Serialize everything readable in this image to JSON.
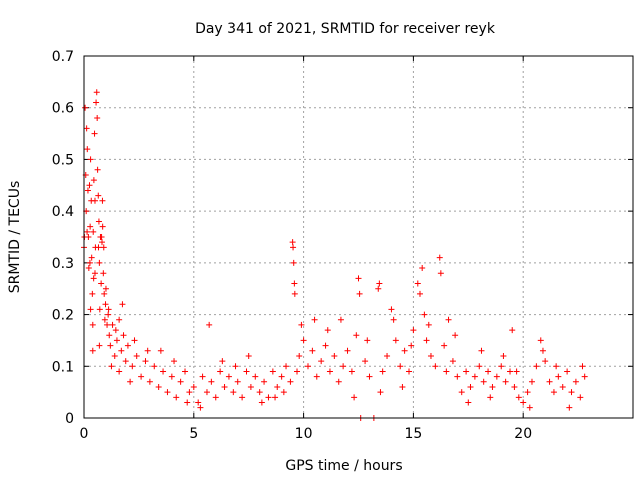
{
  "chart_data": {
    "type": "scatter",
    "title": "Day 341 of 2021, SRMTID for receiver reyk",
    "xlabel": "GPS time / hours",
    "ylabel": "SRMTID / TECUs",
    "xlim": [
      0,
      25
    ],
    "ylim": [
      0,
      0.7
    ],
    "x_ticks": [
      0,
      5,
      10,
      15,
      20
    ],
    "y_ticks": [
      0,
      0.1,
      0.2,
      0.3,
      0.4,
      0.5,
      0.6,
      0.7
    ],
    "x_tick_labels": [
      "0",
      "5",
      "10",
      "15",
      "20"
    ],
    "y_tick_labels": [
      "0",
      "0.1",
      "0.2",
      "0.3",
      "0.4",
      "0.5",
      "0.6",
      "0.7"
    ],
    "grid": true,
    "marker": "+",
    "series_color": "#ff0000",
    "series": [
      {
        "name": "reyk",
        "points": [
          [
            0.0,
            0.33
          ],
          [
            0.05,
            0.6
          ],
          [
            0.08,
            0.47
          ],
          [
            0.1,
            0.4
          ],
          [
            0.12,
            0.56
          ],
          [
            0.15,
            0.52
          ],
          [
            0.18,
            0.44
          ],
          [
            0.2,
            0.35
          ],
          [
            0.22,
            0.29
          ],
          [
            0.25,
            0.45
          ],
          [
            0.28,
            0.37
          ],
          [
            0.3,
            0.5
          ],
          [
            0.33,
            0.42
          ],
          [
            0.35,
            0.31
          ],
          [
            0.38,
            0.24
          ],
          [
            0.4,
            0.13
          ],
          [
            0.42,
            0.36
          ],
          [
            0.45,
            0.46
          ],
          [
            0.48,
            0.55
          ],
          [
            0.5,
            0.42
          ],
          [
            0.52,
            0.33
          ],
          [
            0.55,
            0.61
          ],
          [
            0.58,
            0.63
          ],
          [
            0.6,
            0.58
          ],
          [
            0.62,
            0.48
          ],
          [
            0.65,
            0.43
          ],
          [
            0.68,
            0.38
          ],
          [
            0.7,
            0.3
          ],
          [
            0.72,
            0.21
          ],
          [
            0.75,
            0.35
          ],
          [
            0.78,
            0.26
          ],
          [
            0.8,
            0.35
          ],
          [
            0.82,
            0.34
          ],
          [
            0.85,
            0.37
          ],
          [
            0.88,
            0.28
          ],
          [
            0.9,
            0.33
          ],
          [
            0.92,
            0.24
          ],
          [
            0.95,
            0.19
          ],
          [
            0.98,
            0.22
          ],
          [
            1.0,
            0.25
          ],
          [
            1.05,
            0.18
          ],
          [
            1.1,
            0.2
          ],
          [
            1.15,
            0.16
          ],
          [
            1.2,
            0.14
          ],
          [
            1.3,
            0.18
          ],
          [
            1.4,
            0.12
          ],
          [
            1.5,
            0.15
          ],
          [
            1.6,
            0.19
          ],
          [
            1.7,
            0.13
          ],
          [
            1.8,
            0.16
          ],
          [
            1.9,
            0.11
          ],
          [
            2.0,
            0.14
          ],
          [
            2.2,
            0.1
          ],
          [
            2.4,
            0.12
          ],
          [
            2.6,
            0.08
          ],
          [
            2.8,
            0.11
          ],
          [
            3.0,
            0.07
          ],
          [
            3.2,
            0.1
          ],
          [
            3.4,
            0.06
          ],
          [
            3.6,
            0.09
          ],
          [
            3.8,
            0.05
          ],
          [
            4.0,
            0.08
          ],
          [
            4.2,
            0.04
          ],
          [
            4.4,
            0.07
          ],
          [
            4.6,
            0.09
          ],
          [
            4.8,
            0.05
          ],
          [
            5.0,
            0.06
          ],
          [
            5.2,
            0.03
          ],
          [
            5.4,
            0.08
          ],
          [
            5.6,
            0.05
          ],
          [
            5.8,
            0.07
          ],
          [
            6.0,
            0.04
          ],
          [
            6.2,
            0.09
          ],
          [
            6.4,
            0.06
          ],
          [
            6.6,
            0.08
          ],
          [
            6.8,
            0.05
          ],
          [
            7.0,
            0.07
          ],
          [
            7.2,
            0.04
          ],
          [
            7.4,
            0.09
          ],
          [
            7.6,
            0.06
          ],
          [
            7.8,
            0.08
          ],
          [
            8.0,
            0.05
          ],
          [
            8.2,
            0.07
          ],
          [
            8.4,
            0.04
          ],
          [
            8.6,
            0.09
          ],
          [
            8.8,
            0.06
          ],
          [
            9.0,
            0.08
          ],
          [
            9.2,
            0.1
          ],
          [
            9.4,
            0.07
          ],
          [
            9.5,
            0.34
          ],
          [
            9.52,
            0.33
          ],
          [
            9.55,
            0.3
          ],
          [
            9.58,
            0.26
          ],
          [
            9.6,
            0.24
          ],
          [
            9.7,
            0.09
          ],
          [
            9.8,
            0.12
          ],
          [
            10.0,
            0.15
          ],
          [
            10.2,
            0.1
          ],
          [
            10.4,
            0.13
          ],
          [
            10.6,
            0.08
          ],
          [
            10.8,
            0.11
          ],
          [
            11.0,
            0.14
          ],
          [
            11.2,
            0.09
          ],
          [
            11.4,
            0.12
          ],
          [
            11.6,
            0.07
          ],
          [
            11.8,
            0.1
          ],
          [
            12.0,
            0.13
          ],
          [
            12.2,
            0.09
          ],
          [
            12.4,
            0.16
          ],
          [
            12.5,
            0.27
          ],
          [
            12.55,
            0.24
          ],
          [
            12.6,
            0.0
          ],
          [
            12.8,
            0.11
          ],
          [
            13.0,
            0.08
          ],
          [
            13.2,
            0.0
          ],
          [
            13.4,
            0.25
          ],
          [
            13.45,
            0.26
          ],
          [
            13.6,
            0.09
          ],
          [
            13.8,
            0.12
          ],
          [
            14.0,
            0.21
          ],
          [
            14.2,
            0.15
          ],
          [
            14.4,
            0.1
          ],
          [
            14.6,
            0.13
          ],
          [
            14.8,
            0.09
          ],
          [
            15.0,
            0.17
          ],
          [
            15.2,
            0.26
          ],
          [
            15.3,
            0.24
          ],
          [
            15.4,
            0.29
          ],
          [
            15.5,
            0.2
          ],
          [
            15.6,
            0.15
          ],
          [
            15.8,
            0.12
          ],
          [
            16.0,
            0.1
          ],
          [
            16.2,
            0.31
          ],
          [
            16.25,
            0.28
          ],
          [
            16.4,
            0.14
          ],
          [
            16.6,
            0.19
          ],
          [
            16.8,
            0.11
          ],
          [
            17.0,
            0.08
          ],
          [
            17.2,
            0.05
          ],
          [
            17.4,
            0.09
          ],
          [
            17.6,
            0.06
          ],
          [
            17.8,
            0.08
          ],
          [
            18.0,
            0.1
          ],
          [
            18.2,
            0.07
          ],
          [
            18.4,
            0.09
          ],
          [
            18.6,
            0.06
          ],
          [
            18.8,
            0.08
          ],
          [
            19.0,
            0.1
          ],
          [
            19.2,
            0.07
          ],
          [
            19.4,
            0.09
          ],
          [
            19.6,
            0.06
          ],
          [
            19.8,
            0.04
          ],
          [
            20.0,
            0.03
          ],
          [
            20.2,
            0.05
          ],
          [
            20.4,
            0.07
          ],
          [
            20.6,
            0.1
          ],
          [
            20.8,
            0.15
          ],
          [
            21.0,
            0.11
          ],
          [
            21.2,
            0.07
          ],
          [
            21.4,
            0.05
          ],
          [
            21.6,
            0.08
          ],
          [
            21.8,
            0.06
          ],
          [
            22.0,
            0.09
          ],
          [
            22.2,
            0.05
          ],
          [
            22.4,
            0.07
          ],
          [
            22.6,
            0.04
          ],
          [
            22.8,
            0.08
          ],
          [
            19.5,
            0.17
          ],
          [
            0.02,
            0.35
          ],
          [
            0.14,
            0.36
          ],
          [
            0.27,
            0.3
          ],
          [
            0.44,
            0.27
          ],
          [
            0.66,
            0.33
          ],
          [
            0.84,
            0.42
          ],
          [
            1.12,
            0.21
          ],
          [
            1.45,
            0.17
          ],
          [
            1.75,
            0.22
          ],
          [
            2.3,
            0.15
          ],
          [
            2.9,
            0.13
          ],
          [
            3.5,
            0.13
          ],
          [
            4.1,
            0.11
          ],
          [
            4.7,
            0.03
          ],
          [
            5.3,
            0.02
          ],
          [
            5.7,
            0.18
          ],
          [
            6.3,
            0.11
          ],
          [
            6.9,
            0.1
          ],
          [
            7.5,
            0.12
          ],
          [
            8.1,
            0.03
          ],
          [
            8.7,
            0.04
          ],
          [
            9.1,
            0.05
          ],
          [
            9.9,
            0.18
          ],
          [
            10.5,
            0.19
          ],
          [
            11.1,
            0.17
          ],
          [
            11.7,
            0.19
          ],
          [
            12.3,
            0.04
          ],
          [
            12.9,
            0.15
          ],
          [
            13.5,
            0.05
          ],
          [
            14.1,
            0.19
          ],
          [
            14.5,
            0.06
          ],
          [
            14.9,
            0.14
          ],
          [
            15.7,
            0.18
          ],
          [
            16.5,
            0.09
          ],
          [
            16.9,
            0.16
          ],
          [
            17.5,
            0.03
          ],
          [
            18.1,
            0.13
          ],
          [
            18.5,
            0.04
          ],
          [
            19.1,
            0.12
          ],
          [
            19.7,
            0.09
          ],
          [
            20.3,
            0.02
          ],
          [
            20.9,
            0.13
          ],
          [
            21.5,
            0.1
          ],
          [
            22.1,
            0.02
          ],
          [
            22.7,
            0.1
          ],
          [
            0.5,
            0.28
          ],
          [
            0.3,
            0.21
          ],
          [
            0.4,
            0.18
          ],
          [
            0.7,
            0.14
          ],
          [
            1.25,
            0.1
          ],
          [
            1.6,
            0.09
          ],
          [
            2.1,
            0.07
          ]
        ]
      }
    ]
  }
}
